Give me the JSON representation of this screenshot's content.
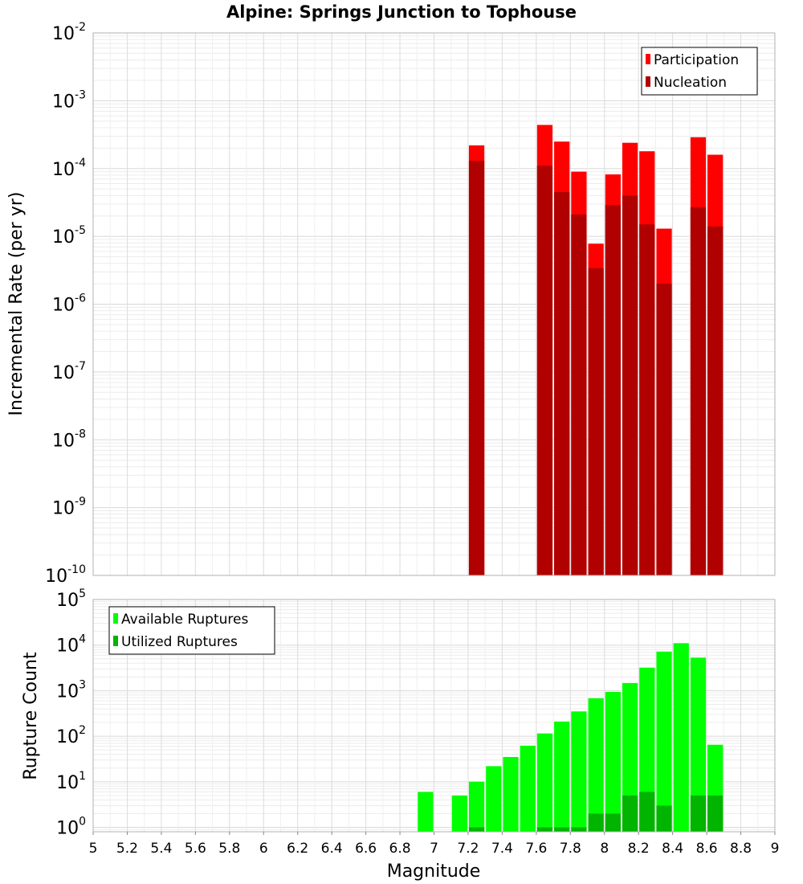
{
  "chart_data": [
    {
      "type": "bar",
      "panel": "top",
      "title": "Alpine: Springs Junction to Tophouse",
      "ylabel": "Incremental Rate (per yr)",
      "xlabel": "",
      "yscale": "log",
      "ylim": [
        1e-10,
        0.01
      ],
      "ytick_base": "10",
      "ytick_exponents": [
        "-10",
        "-9",
        "-8",
        "-7",
        "-6",
        "-5",
        "-4",
        "-3",
        "-2"
      ],
      "xlim": [
        5,
        9
      ],
      "grid": true,
      "legend_position": "top-right",
      "x": [
        7.25,
        7.65,
        7.75,
        7.85,
        7.95,
        8.05,
        8.15,
        8.25,
        8.35,
        8.55,
        8.65
      ],
      "series": [
        {
          "name": "Participation",
          "color": "#ff0000",
          "values": [
            0.00022,
            0.00044,
            0.00025,
            9e-05,
            7.8e-06,
            8.2e-05,
            0.00024,
            0.00018,
            1.3e-05,
            0.00029,
            0.00016
          ]
        },
        {
          "name": "Nucleation",
          "color": "#b00000",
          "values": [
            0.00013,
            0.00011,
            4.5e-05,
            2.1e-05,
            3.4e-06,
            2.9e-05,
            4e-05,
            1.5e-05,
            2e-06,
            2.7e-05,
            1.4e-05
          ]
        }
      ]
    },
    {
      "type": "bar",
      "panel": "bottom",
      "ylabel": "Rupture Count",
      "xlabel": "Magnitude",
      "yscale": "log",
      "ylim": [
        0.8,
        100000
      ],
      "ytick_base": "10",
      "ytick_exponents": [
        "0",
        "1",
        "2",
        "3",
        "4",
        "5"
      ],
      "xlim": [
        5,
        9
      ],
      "xticks": [
        "5",
        "5.2",
        "5.4",
        "5.6",
        "5.8",
        "6",
        "6.2",
        "6.4",
        "6.6",
        "6.8",
        "7",
        "7.2",
        "7.4",
        "7.6",
        "7.8",
        "8",
        "8.2",
        "8.4",
        "8.6",
        "8.8",
        "9"
      ],
      "grid": true,
      "legend_position": "top-left",
      "x": [
        6.95,
        7.15,
        7.25,
        7.35,
        7.45,
        7.55,
        7.65,
        7.75,
        7.85,
        7.95,
        8.05,
        8.15,
        8.25,
        8.35,
        8.45,
        8.55,
        8.65
      ],
      "series": [
        {
          "name": "Available Ruptures",
          "color": "#00ff00",
          "values": [
            6,
            5,
            10,
            22,
            35,
            62,
            115,
            210,
            350,
            680,
            940,
            1470,
            3200,
            7200,
            11000,
            5300,
            65
          ]
        },
        {
          "name": "Utilized Ruptures",
          "color": "#00b400",
          "values": [
            0,
            0,
            1,
            0,
            0,
            0,
            1,
            1,
            1,
            2,
            2,
            5,
            6,
            3,
            0,
            5,
            5
          ]
        }
      ]
    }
  ]
}
